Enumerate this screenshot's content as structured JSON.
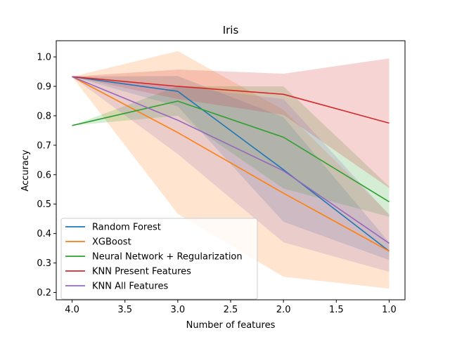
{
  "chart_data": {
    "type": "line",
    "title": "Iris",
    "xlabel": "Number of features",
    "ylabel": "Accuracy",
    "xlim": [
      4.15,
      0.85
    ],
    "ylim": [
      0.175,
      1.055
    ],
    "xticks": [
      4.0,
      3.5,
      3.0,
      2.5,
      2.0,
      1.5,
      1.0
    ],
    "xtick_labels": [
      "4.0",
      "3.5",
      "3.0",
      "2.5",
      "2.0",
      "1.5",
      "1.0"
    ],
    "yticks": [
      0.2,
      0.3,
      0.4,
      0.5,
      0.6,
      0.7,
      0.8,
      0.9,
      1.0
    ],
    "ytick_labels": [
      "0.2",
      "0.3",
      "0.4",
      "0.5",
      "0.6",
      "0.7",
      "0.8",
      "0.9",
      "1.0"
    ],
    "grid": false,
    "legend_position": "lower-left",
    "x": [
      4.0,
      3.0,
      2.0,
      1.0
    ],
    "series": [
      {
        "name": "Random Forest",
        "color": "#1f77b4",
        "values": [
          0.933,
          0.883,
          0.617,
          0.34
        ],
        "lower": [
          0.933,
          0.832,
          0.44,
          0.31
        ],
        "upper": [
          0.933,
          0.935,
          0.795,
          0.37
        ]
      },
      {
        "name": "XGBoost",
        "color": "#ff7f0e",
        "values": [
          0.933,
          0.743,
          0.537,
          0.34
        ],
        "lower": [
          0.933,
          0.467,
          0.253,
          0.213
        ],
        "upper": [
          0.933,
          1.02,
          0.82,
          0.467
        ]
      },
      {
        "name": "Neural Network + Regularization",
        "color": "#2ca02c",
        "values": [
          0.767,
          0.85,
          0.727,
          0.508
        ],
        "lower": [
          0.767,
          0.8,
          0.553,
          0.457
        ],
        "upper": [
          0.767,
          0.9,
          0.9,
          0.56
        ]
      },
      {
        "name": "KNN Present Features",
        "color": "#d62728",
        "values": [
          0.933,
          0.9,
          0.873,
          0.775
        ],
        "lower": [
          0.933,
          0.857,
          0.803,
          0.555
        ],
        "upper": [
          0.933,
          0.957,
          0.943,
          0.995
        ]
      },
      {
        "name": "KNN All Features",
        "color": "#9467bd",
        "values": [
          0.933,
          0.785,
          0.613,
          0.367
        ],
        "lower": [
          0.933,
          0.67,
          0.37,
          0.27
        ],
        "upper": [
          0.933,
          0.9,
          0.857,
          0.463
        ]
      }
    ]
  }
}
